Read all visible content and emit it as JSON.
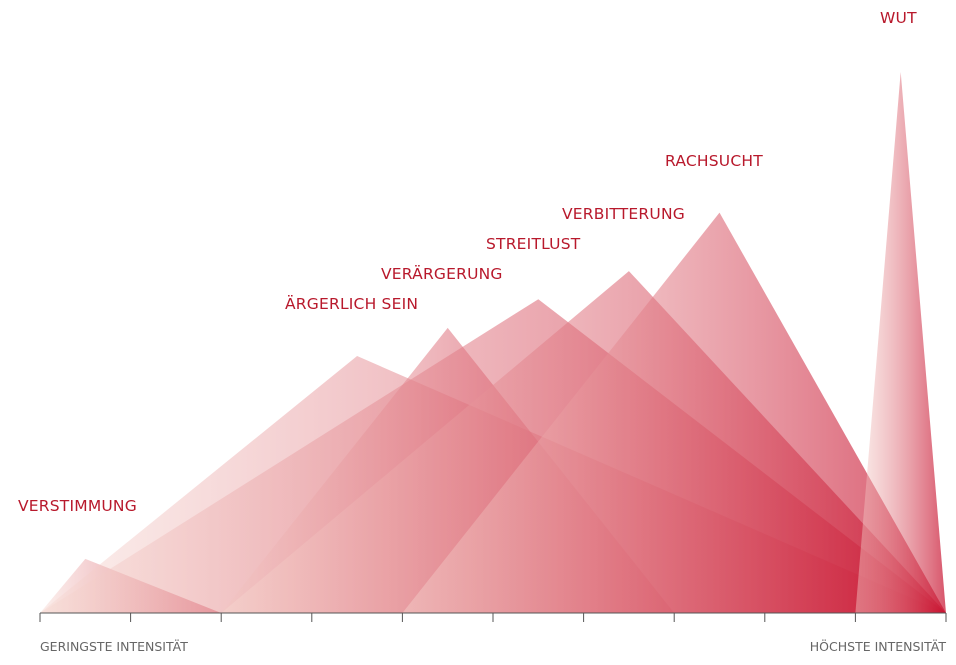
{
  "chart_data": {
    "type": "area",
    "title": "",
    "xlabel_left": "GERINGSTE INTENSITÄT",
    "xlabel_right": "HÖCHSTE INTENSITÄT",
    "xlim": [
      0,
      10
    ],
    "ylim": [
      0,
      1
    ],
    "x_ticks": [
      0,
      1,
      2,
      3,
      4,
      5,
      6,
      7,
      8,
      9,
      10
    ],
    "color_light": "#f6d9d2",
    "color_dark": "#c8102e",
    "label_color": "#b8192c",
    "series": [
      {
        "name": "VERSTIMMUNG",
        "start": 0,
        "peak": 0.5,
        "end": 2,
        "height": 0.1
      },
      {
        "name": "ÄRGERLICH SEIN",
        "start": 0,
        "peak": 3.5,
        "end": 10,
        "height": 0.475
      },
      {
        "name": "VERÄRGERUNG",
        "start": 2,
        "peak": 4.5,
        "end": 7,
        "height": 0.527
      },
      {
        "name": "STREITLUST",
        "start": 0,
        "peak": 5.5,
        "end": 10,
        "height": 0.58
      },
      {
        "name": "VERBITTERUNG",
        "start": 2,
        "peak": 6.5,
        "end": 10,
        "height": 0.632
      },
      {
        "name": "RACHSUCHT",
        "start": 4,
        "peak": 7.5,
        "end": 10,
        "height": 0.74
      },
      {
        "name": "WUT",
        "start": 9,
        "peak": 9.5,
        "end": 10,
        "height": 1.0
      }
    ]
  }
}
